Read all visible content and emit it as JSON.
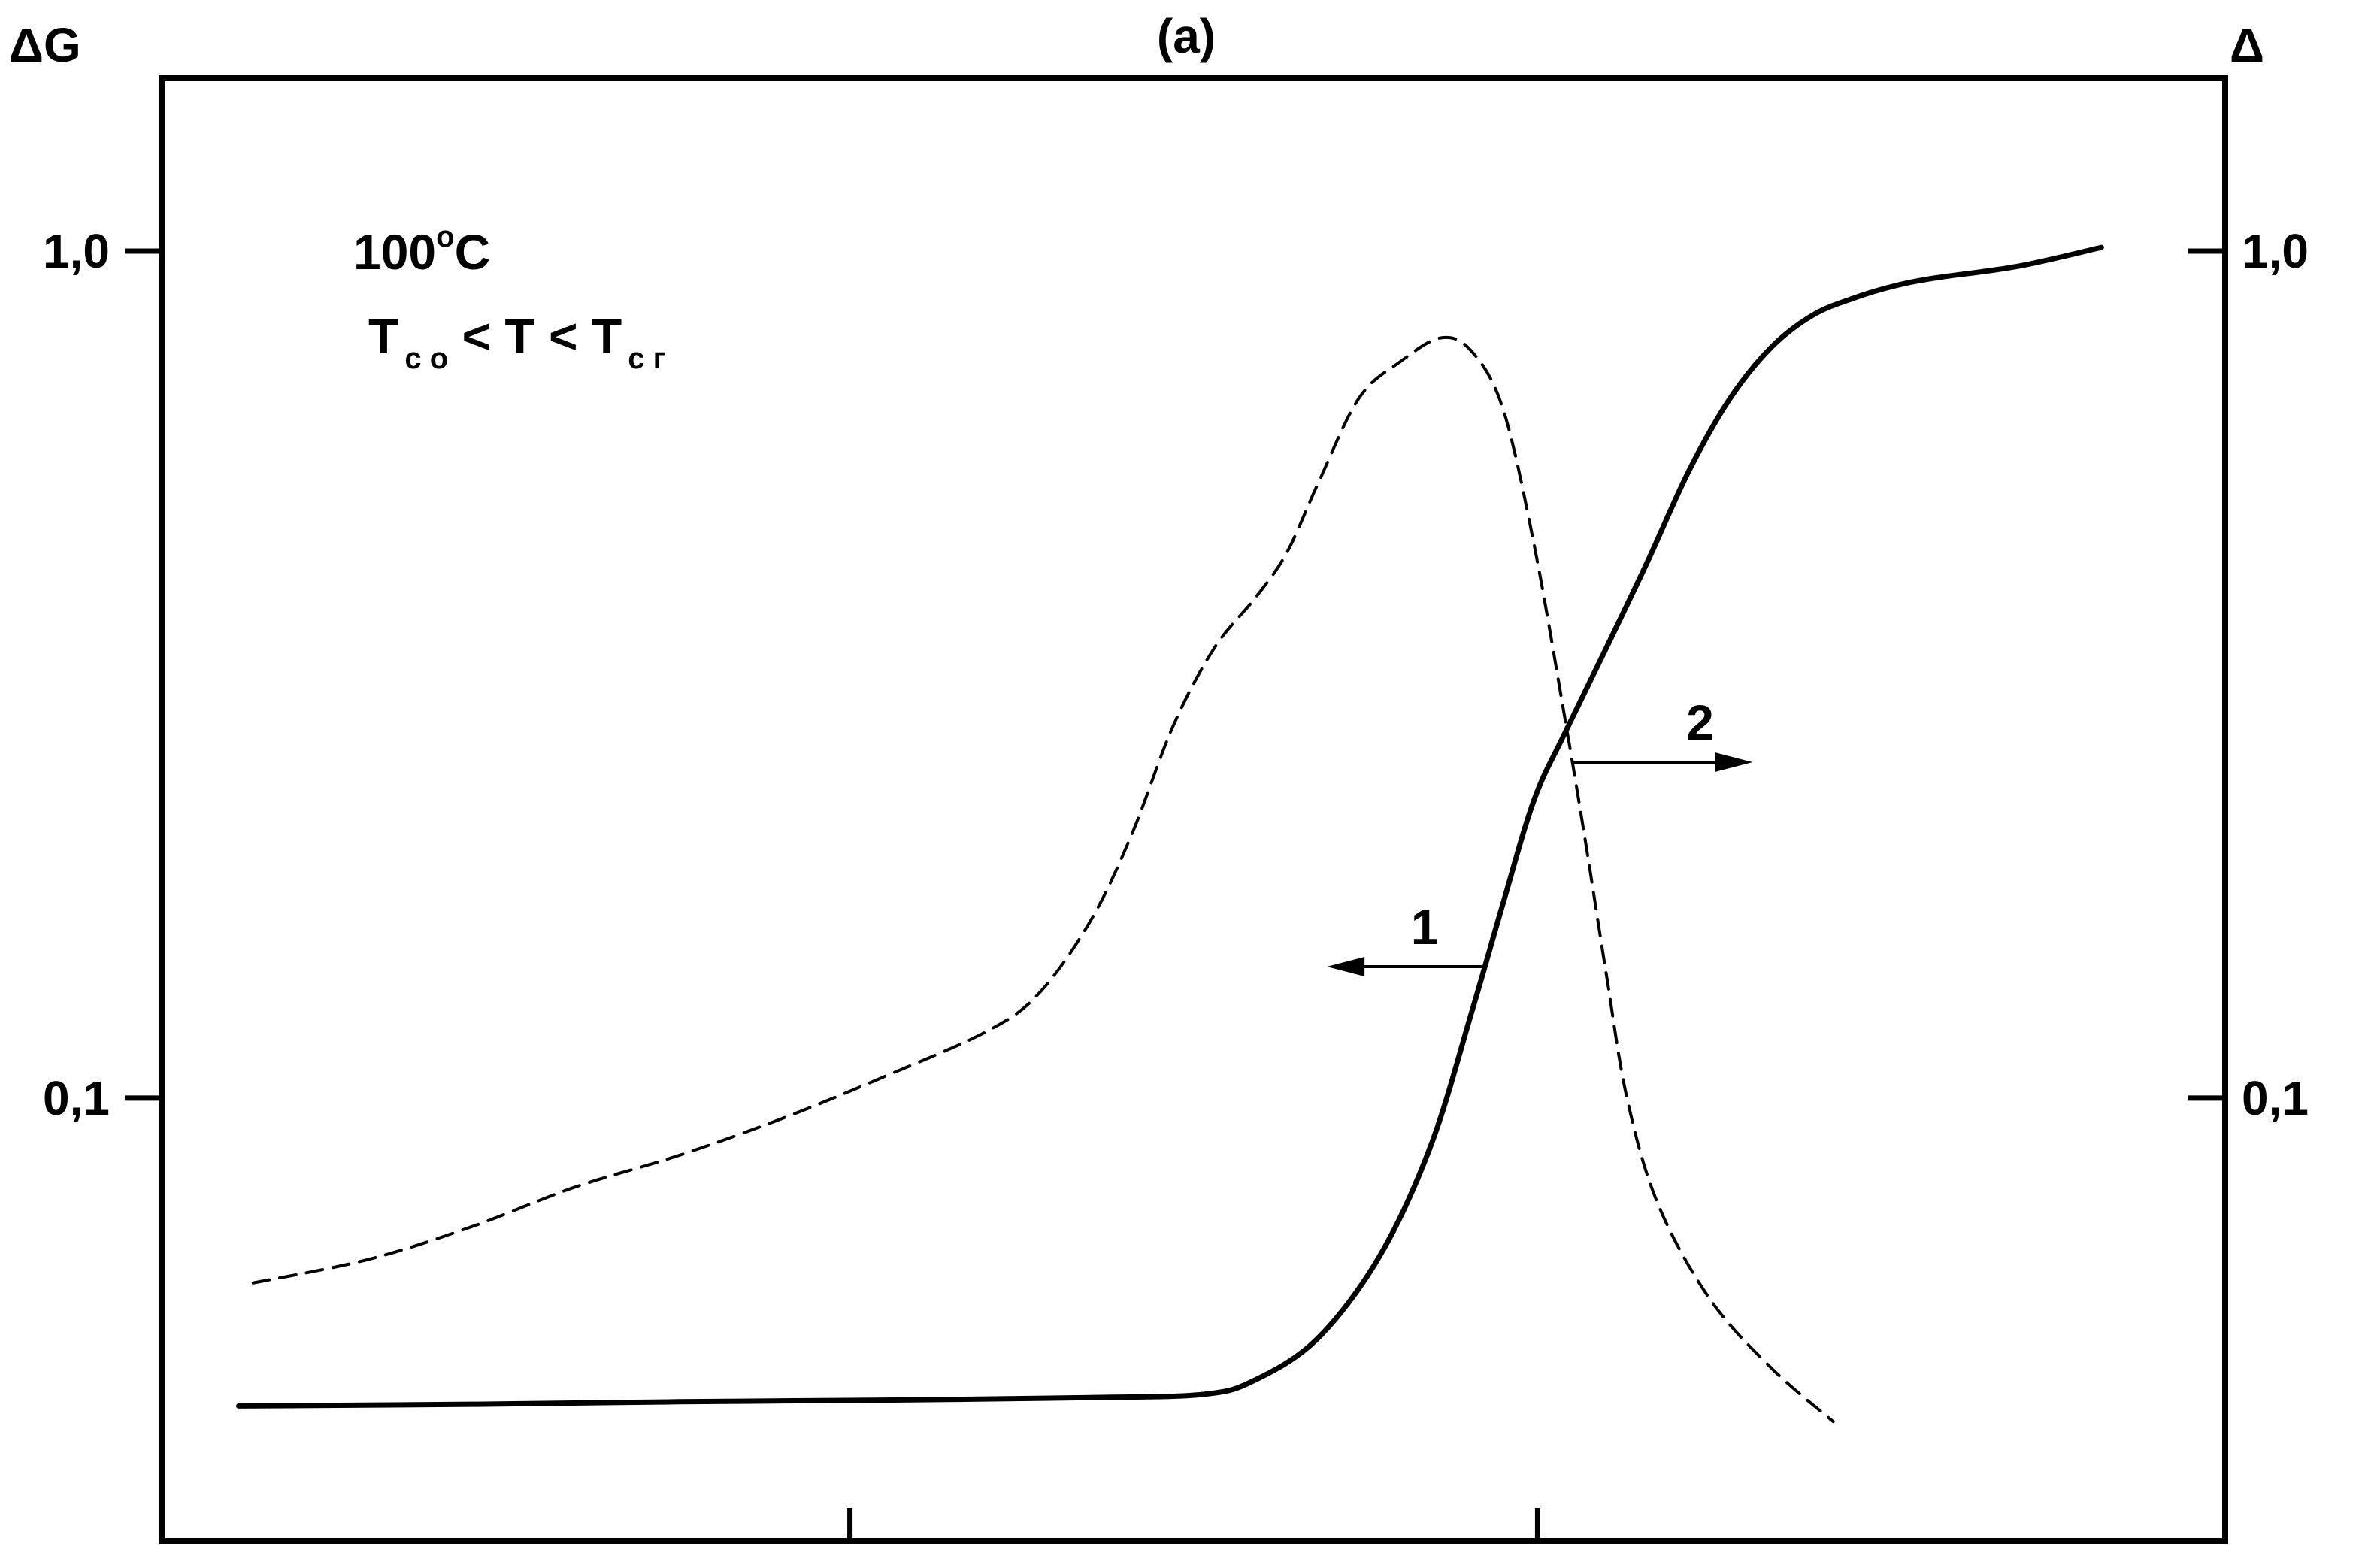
{
  "chart_data": {
    "type": "line",
    "title": "(a)",
    "ylabel_left": "ΔG",
    "ylabel_right": "Δ",
    "y_scale": "log",
    "ylim": [
      0.03,
      1.6
    ],
    "xlim": [
      0,
      100
    ],
    "x_ticks": [
      0,
      33.33,
      66.67,
      100
    ],
    "y_ticks_left": [
      {
        "value": 0.1,
        "label": "0,1"
      },
      {
        "value": 1.0,
        "label": "1,0"
      }
    ],
    "y_ticks_right": [
      {
        "value": 0.1,
        "label": "0,1"
      },
      {
        "value": 1.0,
        "label": "1,0"
      }
    ],
    "annotation": {
      "temperature": "100",
      "degree": "o",
      "unit": "C",
      "condition_T1": "T",
      "condition_sub1": "c o",
      "condition_mid": " < T < ",
      "condition_T2": "T",
      "condition_sub2": "c г"
    },
    "series": [
      {
        "name": "1",
        "axis": "left",
        "style": "solid",
        "points": [
          [
            3.7,
            0.0433
          ],
          [
            15,
            0.0435
          ],
          [
            25,
            0.0438
          ],
          [
            35,
            0.044
          ],
          [
            45,
            0.0443
          ],
          [
            50.5,
            0.0447
          ],
          [
            53,
            0.0465
          ],
          [
            56,
            0.052
          ],
          [
            59,
            0.065
          ],
          [
            61.5,
            0.088
          ],
          [
            63.5,
            0.127
          ],
          [
            65,
            0.17
          ],
          [
            66.5,
            0.225
          ],
          [
            68,
            0.27
          ],
          [
            70,
            0.34
          ],
          [
            72,
            0.43
          ],
          [
            74,
            0.55
          ],
          [
            76,
            0.67
          ],
          [
            78,
            0.77
          ],
          [
            80,
            0.84
          ],
          [
            82,
            0.88
          ],
          [
            84,
            0.91
          ],
          [
            86,
            0.93
          ],
          [
            90,
            0.96
          ],
          [
            94,
            1.01
          ]
        ]
      },
      {
        "name": "2",
        "axis": "right",
        "style": "dashed",
        "points": [
          [
            4.4,
            0.0605
          ],
          [
            10,
            0.0645
          ],
          [
            15,
            0.0705
          ],
          [
            20,
            0.0785
          ],
          [
            25,
            0.0855
          ],
          [
            30,
            0.0945
          ],
          [
            35,
            0.106
          ],
          [
            40,
            0.12
          ],
          [
            42.5,
            0.133
          ],
          [
            45,
            0.162
          ],
          [
            47,
            0.205
          ],
          [
            49,
            0.275
          ],
          [
            51,
            0.34
          ],
          [
            53,
            0.39
          ],
          [
            54.5,
            0.44
          ],
          [
            56,
            0.53
          ],
          [
            58,
            0.67
          ],
          [
            60,
            0.74
          ],
          [
            62,
            0.79
          ],
          [
            63.5,
            0.76
          ],
          [
            65,
            0.65
          ],
          [
            66.5,
            0.45
          ],
          [
            68,
            0.28
          ],
          [
            69,
            0.2
          ],
          [
            70,
            0.14
          ],
          [
            71,
            0.1
          ],
          [
            72.5,
            0.075
          ],
          [
            75,
            0.058
          ],
          [
            78,
            0.048
          ],
          [
            81,
            0.0415
          ]
        ]
      }
    ],
    "curve_labels": [
      {
        "series": "1",
        "text": "1",
        "arrow": "left"
      },
      {
        "series": "2",
        "text": "2",
        "arrow": "right"
      }
    ]
  }
}
